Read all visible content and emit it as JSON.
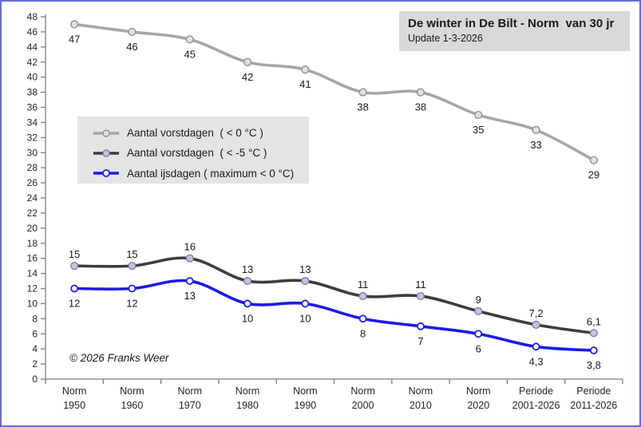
{
  "window": {
    "border_color": "#6a6ad2",
    "background": "#ffffff"
  },
  "title_box": {
    "background": "#d9d9d9"
  },
  "annotations": {
    "copyright": "© 2026 Franks Weer"
  },
  "chart_data": {
    "type": "line",
    "title": "De winter in De Bilt - Norm  van 30 jr",
    "subtitle": "Update 1-3-2026",
    "categories": [
      [
        "Norm",
        "1950"
      ],
      [
        "Norm",
        "1960"
      ],
      [
        "Norm",
        "1970"
      ],
      [
        "Norm",
        "1980"
      ],
      [
        "Norm",
        "1990"
      ],
      [
        "Norm",
        "2000"
      ],
      [
        "Norm",
        "2010"
      ],
      [
        "Norm",
        "2020"
      ],
      [
        "Periode",
        "2001-2026"
      ],
      [
        "Periode",
        "2011-2026"
      ]
    ],
    "y_axis": {
      "min": 0,
      "max": 48,
      "step": 2
    },
    "grid": false,
    "legend_position": "inside-upper-left",
    "line_style": "smooth",
    "series": [
      {
        "name": "Aantal vorstdagen  ( < 0 °C )",
        "values": [
          47,
          46,
          45,
          42,
          41,
          38,
          38,
          35,
          33,
          29
        ],
        "labels": [
          "47",
          "46",
          "45",
          "42",
          "41",
          "38",
          "38",
          "35",
          "33",
          "29"
        ],
        "label_placement": "below",
        "color": "#a6a6a6",
        "marker_fill": "#e0e0ea",
        "marker_stroke": "#90909e"
      },
      {
        "name": "Aantal vorstdagen  ( < -5 °C )",
        "values": [
          15,
          15,
          16,
          13,
          13,
          11,
          11,
          9,
          7.2,
          6.1
        ],
        "labels": [
          "15",
          "15",
          "16",
          "13",
          "13",
          "11",
          "11",
          "9",
          "7,2",
          "6,1"
        ],
        "label_placement": "above",
        "color": "#3d3d3d",
        "marker_fill": "#c9c1de",
        "marker_stroke": "#8a7bab"
      },
      {
        "name": "Aantal ijsdagen ( maximum < 0 °C)",
        "values": [
          12,
          12,
          13,
          10,
          10,
          8,
          7,
          6,
          4.3,
          3.8
        ],
        "labels": [
          "12",
          "12",
          "13",
          "10",
          "10",
          "8",
          "7",
          "6",
          "4,3",
          "3,8"
        ],
        "label_placement": "below",
        "color": "#1b1be8",
        "marker_fill": "#ffffff",
        "marker_stroke": "#2222e8"
      }
    ],
    "style": {
      "axis_color": "#7f7f7f",
      "axis_label_color": "#262626",
      "data_label_color": "#1a1a1a"
    }
  }
}
